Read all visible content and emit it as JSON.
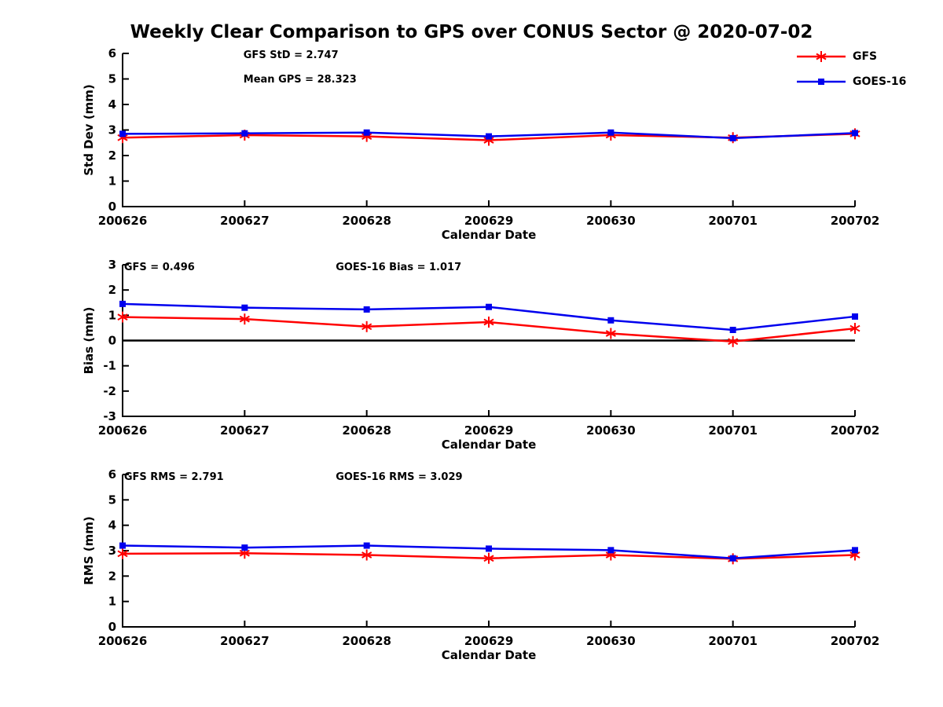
{
  "title": "Weekly Clear Comparison to GPS over CONUS Sector @ 2020-07-02",
  "colors": {
    "gfs": "#ff0000",
    "goes16": "#0000ee",
    "axis": "#000000",
    "background": "#ffffff"
  },
  "legend": {
    "position": "top-right",
    "items": [
      {
        "label": "GFS",
        "color": "#ff0000",
        "marker": "asterisk"
      },
      {
        "label": "GOES-16",
        "color": "#0000ee",
        "marker": "square"
      }
    ]
  },
  "chart_data": [
    {
      "type": "line",
      "name": "std-dev",
      "xlabel": "Calendar Date",
      "ylabel": "Std Dev (mm)",
      "ylim": [
        0,
        6
      ],
      "ytick_step": 1,
      "grid": false,
      "zero_line": false,
      "categories": [
        "200626",
        "200627",
        "200628",
        "200629",
        "200630",
        "200701",
        "200702"
      ],
      "series": [
        {
          "name": "GFS",
          "color": "#ff0000",
          "marker": "asterisk",
          "values": [
            2.7,
            2.8,
            2.75,
            2.6,
            2.8,
            2.7,
            2.85
          ]
        },
        {
          "name": "GOES-16",
          "color": "#0000ee",
          "marker": "square",
          "values": [
            2.85,
            2.87,
            2.9,
            2.75,
            2.9,
            2.68,
            2.88
          ]
        }
      ],
      "annotations": [
        {
          "text": "GFS StD = 2.747",
          "fx": 0.165,
          "fy": 0.031
        },
        {
          "text": "Mean GPS = 28.323",
          "fx": 0.165,
          "fy": 0.19
        }
      ]
    },
    {
      "type": "line",
      "name": "bias",
      "xlabel": "Calendar Date",
      "ylabel": "Bias (mm)",
      "ylim": [
        -3,
        3
      ],
      "ytick_step": 1,
      "grid": false,
      "zero_line": true,
      "categories": [
        "200626",
        "200627",
        "200628",
        "200629",
        "200630",
        "200701",
        "200702"
      ],
      "series": [
        {
          "name": "GFS",
          "color": "#ff0000",
          "marker": "asterisk",
          "values": [
            0.93,
            0.85,
            0.55,
            0.73,
            0.28,
            -0.04,
            0.48
          ]
        },
        {
          "name": "GOES-16",
          "color": "#0000ee",
          "marker": "square",
          "values": [
            1.45,
            1.3,
            1.23,
            1.33,
            0.8,
            0.42,
            0.95
          ]
        }
      ],
      "annotations": [
        {
          "text": "GFS = 0.496",
          "fx": 0.002,
          "fy": 0.036
        },
        {
          "text": "GOES-16 Bias  = 1.017",
          "fx": 0.291,
          "fy": 0.036
        }
      ]
    },
    {
      "type": "line",
      "name": "rms",
      "xlabel": "Calendar Date",
      "ylabel": "RMS (mm)",
      "ylim": [
        0,
        6
      ],
      "ytick_step": 1,
      "grid": false,
      "zero_line": false,
      "categories": [
        "200626",
        "200627",
        "200628",
        "200629",
        "200630",
        "200701",
        "200702"
      ],
      "series": [
        {
          "name": "GFS",
          "color": "#ff0000",
          "marker": "asterisk",
          "values": [
            2.88,
            2.9,
            2.83,
            2.7,
            2.83,
            2.68,
            2.83
          ]
        },
        {
          "name": "GOES-16",
          "color": "#0000ee",
          "marker": "square",
          "values": [
            3.2,
            3.12,
            3.2,
            3.08,
            3.02,
            2.7,
            3.02
          ]
        }
      ],
      "annotations": [
        {
          "text": "GFS RMS = 2.791",
          "fx": 0.002,
          "fy": 0.035
        },
        {
          "text": "GOES-16 RMS = 3.029",
          "fx": 0.291,
          "fy": 0.035
        }
      ]
    }
  ]
}
